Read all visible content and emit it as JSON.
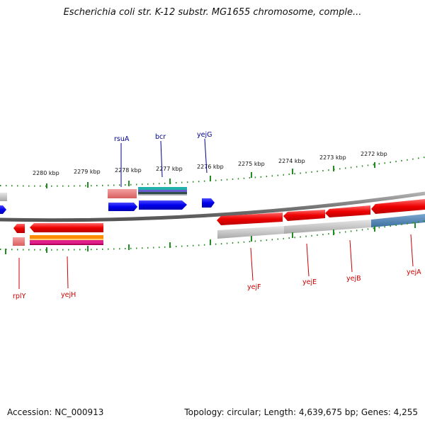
{
  "title": "Escherichia coli str. K-12 substr. MG1655 chromosome, comple...",
  "footer": {
    "accession": "Accession: NC_000913",
    "summary": "Topology: circular; Length: 4,639,675 bp; Genes: 4,255"
  },
  "scale_labels": [
    "2280 kbp",
    "2279 kbp",
    "2278 kbp",
    "2277 kbp",
    "2276 kbp",
    "2275 kbp",
    "2274 kbp",
    "2273 kbp",
    "2272 kbp"
  ],
  "genes_forward": [
    {
      "name": "rsuA",
      "color": "#00008b"
    },
    {
      "name": "bcr",
      "color": "#00008b"
    },
    {
      "name": "yejG",
      "color": "#00008b"
    }
  ],
  "genes_reverse": [
    {
      "name": "rplY",
      "color": "#cc0000"
    },
    {
      "name": "yejH",
      "color": "#cc0000"
    },
    {
      "name": "yejF",
      "color": "#cc0000"
    },
    {
      "name": "yejE",
      "color": "#cc0000"
    },
    {
      "name": "yejB",
      "color": "#cc0000"
    },
    {
      "name": "yejA",
      "color": "#cc0000"
    }
  ],
  "colors": {
    "backbone": "#888888",
    "forward_cds": "#0000ee",
    "reverse_cds": "#ee0000",
    "tick": "#228b22"
  }
}
